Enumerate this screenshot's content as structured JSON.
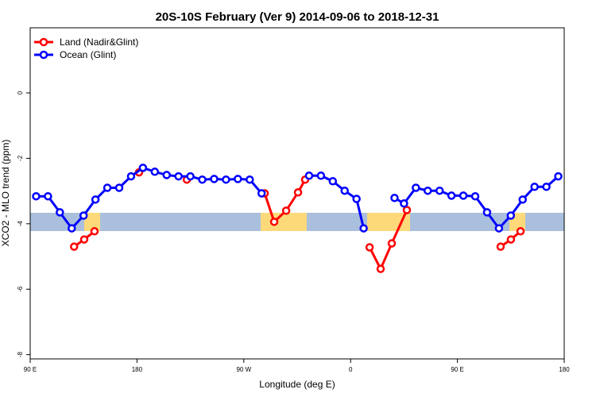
{
  "chart_data": {
    "type": "line",
    "title": "20S-10S February (Ver 9)   2014-09-06 to 2018-12-31",
    "x_label": "Longitude (deg E)",
    "y_label": "XCO2 - MLO trend (ppm)",
    "xlim": [
      90,
      540
    ],
    "ylim": [
      -8.13,
      1.99
    ],
    "xticks": [
      {
        "value": 90,
        "label": "90 E"
      },
      180,
      {
        "value": 270,
        "label": "90 W"
      },
      {
        "value": 360,
        "label": "0"
      },
      {
        "value": 450,
        "label": "90 E"
      },
      {
        "value": 540,
        "label": "180"
      }
    ],
    "yticks": [
      0,
      -2,
      -4,
      -6,
      -8
    ],
    "legend": "top-left",
    "series": [
      {
        "name": "Land (Nadir&Glint)",
        "color": "#ff0000",
        "x": [
          127,
          135.5,
          144.2,
          null,
          181.7,
          null,
          222,
          null,
          287.6,
          295.6,
          305.7,
          315.7,
          321.7,
          null,
          376,
          385.3,
          394.7,
          407.4,
          null,
          486.4,
          495.1,
          503.2
        ],
        "values": [
          -4.7,
          -4.48,
          -4.23,
          null,
          -2.43,
          null,
          -2.65,
          null,
          -3.07,
          -3.94,
          -3.6,
          -3.04,
          -2.65,
          null,
          -4.72,
          -5.38,
          -4.6,
          -3.58,
          null,
          -4.7,
          -4.48,
          -4.23
        ]
      },
      {
        "name": "Ocean (Glint)",
        "color": "#0000ff",
        "x": [
          95,
          105,
          115,
          125,
          135,
          145,
          155,
          165,
          175,
          185,
          195,
          205,
          215,
          225,
          235,
          245,
          255,
          265,
          275,
          285,
          null,
          325,
          335,
          345,
          355,
          365,
          371,
          null,
          397,
          405,
          415,
          425,
          435,
          445,
          455,
          465,
          475,
          485,
          495,
          505,
          515,
          525,
          535
        ],
        "values": [
          -3.16,
          -3.16,
          -3.65,
          -4.14,
          -3.75,
          -3.26,
          -2.9,
          -2.9,
          -2.55,
          -2.29,
          -2.41,
          -2.51,
          -2.55,
          -2.55,
          -2.65,
          -2.63,
          -2.65,
          -2.63,
          -2.65,
          -3.07,
          null,
          -2.53,
          -2.53,
          -2.7,
          -2.99,
          -3.24,
          -4.14,
          null,
          -3.21,
          -3.38,
          -2.9,
          -2.99,
          -2.99,
          -3.14,
          -3.14,
          -3.16,
          -3.65,
          -4.14,
          -3.75,
          -3.26,
          -2.87,
          -2.87,
          -2.55
        ]
      }
    ]
  }
}
